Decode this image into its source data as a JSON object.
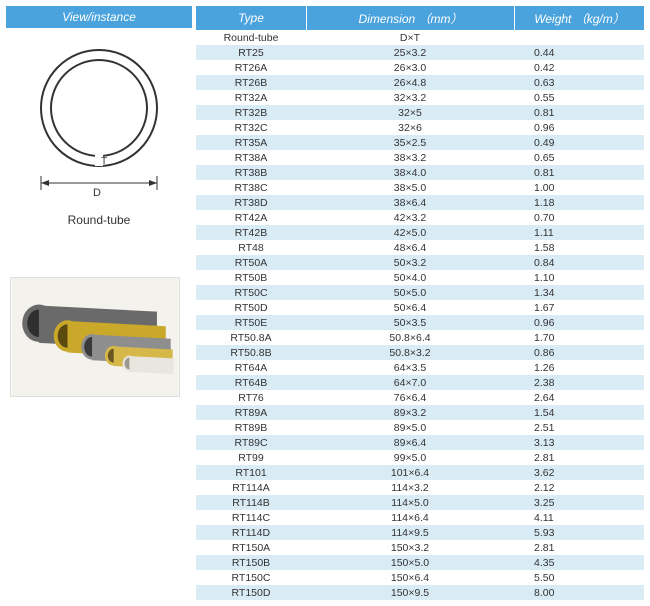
{
  "headers": {
    "view": "View/instance",
    "type": "Type",
    "dimension": "Dimension （mm）",
    "weight": "Weight   （kg/m）"
  },
  "diagram_label": "Round-tube",
  "colors": {
    "header_bg": "#4ba3dd",
    "row_shade": "#d9ebf5",
    "text": "#333333"
  },
  "table": {
    "first_row": {
      "type": "Round-tube",
      "dimension": "D×T",
      "weight": ""
    },
    "rows": [
      {
        "type": "RT25",
        "dimension": "25×3.2",
        "weight": "0.44"
      },
      {
        "type": "RT26A",
        "dimension": "26×3.0",
        "weight": "0.42"
      },
      {
        "type": "RT26B",
        "dimension": "26×4.8",
        "weight": "0.63"
      },
      {
        "type": "RT32A",
        "dimension": "32×3.2",
        "weight": "0.55"
      },
      {
        "type": "RT32B",
        "dimension": "32×5",
        "weight": "0.81"
      },
      {
        "type": "RT32C",
        "dimension": "32×6",
        "weight": "0.96"
      },
      {
        "type": "RT35A",
        "dimension": "35×2.5",
        "weight": "0.49"
      },
      {
        "type": "RT38A",
        "dimension": "38×3.2",
        "weight": "0.65"
      },
      {
        "type": "RT38B",
        "dimension": "38×4.0",
        "weight": "0.81"
      },
      {
        "type": "RT38C",
        "dimension": "38×5.0",
        "weight": "1.00"
      },
      {
        "type": "RT38D",
        "dimension": "38×6.4",
        "weight": "1.18"
      },
      {
        "type": "RT42A",
        "dimension": "42×3.2",
        "weight": "0.70"
      },
      {
        "type": "RT42B",
        "dimension": "42×5.0",
        "weight": "1.11"
      },
      {
        "type": "RT48",
        "dimension": "48×6.4",
        "weight": "1.58"
      },
      {
        "type": "RT50A",
        "dimension": "50×3.2",
        "weight": "0.84"
      },
      {
        "type": "RT50B",
        "dimension": "50×4.0",
        "weight": "1.10"
      },
      {
        "type": "RT50C",
        "dimension": "50×5.0",
        "weight": "1.34"
      },
      {
        "type": "RT50D",
        "dimension": "50×6.4",
        "weight": "1.67"
      },
      {
        "type": "RT50E",
        "dimension": "50×3.5",
        "weight": "0.96"
      },
      {
        "type": "RT50.8A",
        "dimension": "50.8×6.4",
        "weight": "1.70"
      },
      {
        "type": "RT50.8B",
        "dimension": "50.8×3.2",
        "weight": "0.86"
      },
      {
        "type": "RT64A",
        "dimension": "64×3.5",
        "weight": "1.26"
      },
      {
        "type": "RT64B",
        "dimension": "64×7.0",
        "weight": "2.38"
      },
      {
        "type": "RT76",
        "dimension": "76×6.4",
        "weight": "2.64"
      },
      {
        "type": "RT89A",
        "dimension": "89×3.2",
        "weight": "1.54"
      },
      {
        "type": "RT89B",
        "dimension": "89×5.0",
        "weight": "2.51"
      },
      {
        "type": "RT89C",
        "dimension": "89×6.4",
        "weight": "3.13"
      },
      {
        "type": "RT99",
        "dimension": "99×5.0",
        "weight": "2.81"
      },
      {
        "type": "RT101",
        "dimension": "101×6.4",
        "weight": "3.62"
      },
      {
        "type": "RT114A",
        "dimension": "114×3.2",
        "weight": "2.12"
      },
      {
        "type": "RT114B",
        "dimension": "114×5.0",
        "weight": "3.25"
      },
      {
        "type": "RT114C",
        "dimension": "114×6.4",
        "weight": "4.11"
      },
      {
        "type": "RT114D",
        "dimension": "114×9.5",
        "weight": "5.93"
      },
      {
        "type": "RT150A",
        "dimension": "150×3.2",
        "weight": "2.81"
      },
      {
        "type": "RT150B",
        "dimension": "150×5.0",
        "weight": "4.35"
      },
      {
        "type": "RT150C",
        "dimension": "150×6.4",
        "weight": "5.50"
      },
      {
        "type": "RT150D",
        "dimension": "150×9.5",
        "weight": "8.00"
      }
    ]
  },
  "diagram": {
    "D_label": "D",
    "T_label": "T"
  },
  "photo_tubes": [
    {
      "color": "#6a6a6a"
    },
    {
      "color": "#c9a82a"
    },
    {
      "color": "#8e8e8e"
    },
    {
      "color": "#d6b84a"
    },
    {
      "color": "#e8e6df"
    }
  ]
}
